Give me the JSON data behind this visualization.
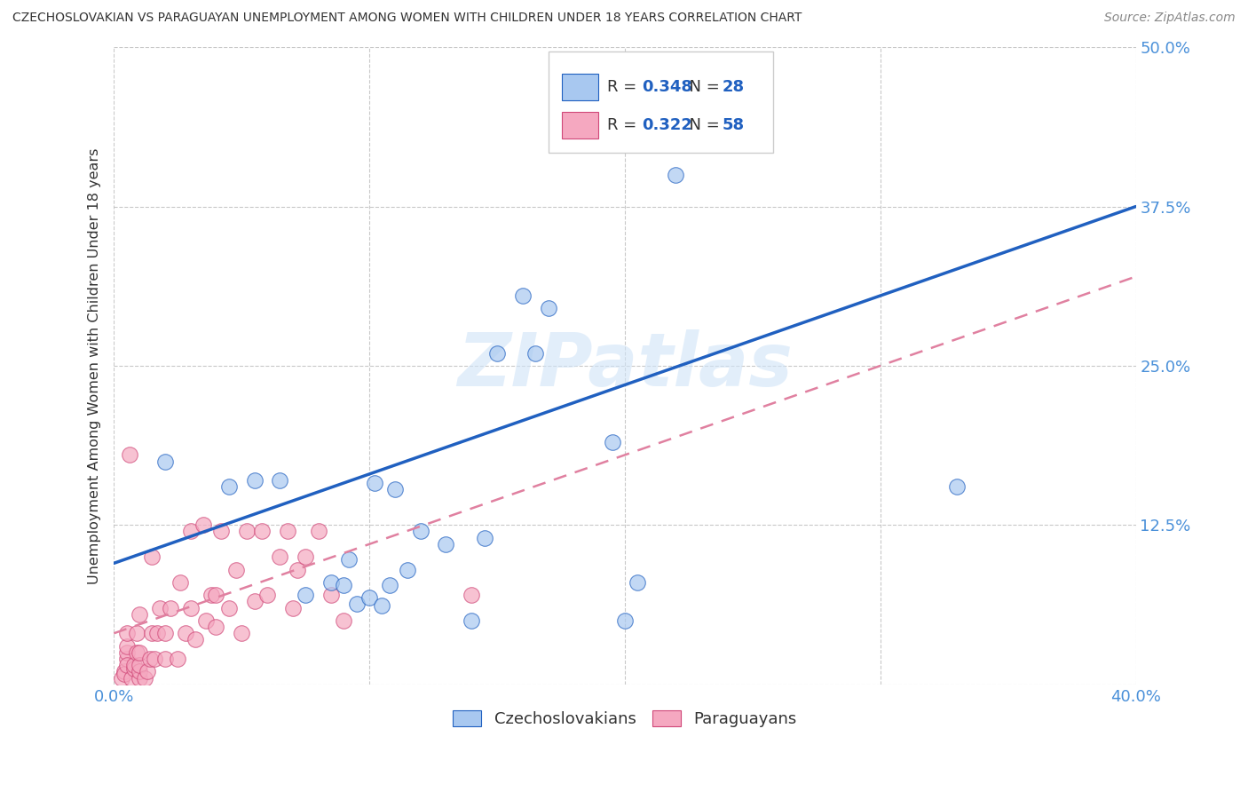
{
  "title": "CZECHOSLOVAKIAN VS PARAGUAYAN UNEMPLOYMENT AMONG WOMEN WITH CHILDREN UNDER 18 YEARS CORRELATION CHART",
  "source": "Source: ZipAtlas.com",
  "ylabel": "Unemployment Among Women with Children Under 18 years",
  "xlabel_czechoslovakians": "Czechoslovakians",
  "xlabel_paraguayans": "Paraguayans",
  "legend_blue_R": "0.348",
  "legend_blue_N": "28",
  "legend_pink_R": "0.322",
  "legend_pink_N": "58",
  "xlim": [
    0.0,
    0.4
  ],
  "ylim": [
    0.0,
    0.5
  ],
  "xticks": [
    0.0,
    0.1,
    0.2,
    0.3,
    0.4
  ],
  "yticks": [
    0.0,
    0.125,
    0.25,
    0.375,
    0.5
  ],
  "color_blue": "#A8C8F0",
  "color_pink": "#F5A8C0",
  "color_blue_line": "#2060C0",
  "color_pink_line": "#D04878",
  "color_pink_line_dashed": "#E080A0",
  "background_color": "#FFFFFF",
  "watermark": "ZIPatlas",
  "blue_line_x0": 0.0,
  "blue_line_y0": 0.095,
  "blue_line_x1": 0.4,
  "blue_line_y1": 0.375,
  "pink_line_x0": 0.0,
  "pink_line_y0": 0.04,
  "pink_line_x1": 0.4,
  "pink_line_y1": 0.32,
  "czechoslovakian_x": [
    0.02,
    0.045,
    0.055,
    0.065,
    0.075,
    0.085,
    0.09,
    0.092,
    0.095,
    0.1,
    0.102,
    0.105,
    0.108,
    0.11,
    0.115,
    0.12,
    0.13,
    0.14,
    0.145,
    0.15,
    0.16,
    0.165,
    0.17,
    0.195,
    0.2,
    0.205,
    0.22,
    0.33
  ],
  "czechoslovakian_y": [
    0.175,
    0.155,
    0.16,
    0.16,
    0.07,
    0.08,
    0.078,
    0.098,
    0.063,
    0.068,
    0.158,
    0.062,
    0.078,
    0.153,
    0.09,
    0.12,
    0.11,
    0.05,
    0.115,
    0.26,
    0.305,
    0.26,
    0.295,
    0.19,
    0.05,
    0.08,
    0.4,
    0.155
  ],
  "paraguayan_x": [
    0.003,
    0.004,
    0.004,
    0.005,
    0.005,
    0.005,
    0.005,
    0.005,
    0.006,
    0.007,
    0.008,
    0.008,
    0.009,
    0.009,
    0.01,
    0.01,
    0.01,
    0.01,
    0.01,
    0.012,
    0.013,
    0.014,
    0.015,
    0.015,
    0.016,
    0.017,
    0.018,
    0.02,
    0.02,
    0.022,
    0.025,
    0.026,
    0.028,
    0.03,
    0.03,
    0.032,
    0.035,
    0.036,
    0.038,
    0.04,
    0.04,
    0.042,
    0.045,
    0.048,
    0.05,
    0.052,
    0.055,
    0.058,
    0.06,
    0.065,
    0.068,
    0.07,
    0.072,
    0.075,
    0.08,
    0.085,
    0.09,
    0.14
  ],
  "paraguayan_y": [
    0.005,
    0.01,
    0.008,
    0.02,
    0.025,
    0.03,
    0.015,
    0.04,
    0.18,
    0.005,
    0.012,
    0.015,
    0.025,
    0.04,
    0.005,
    0.01,
    0.015,
    0.025,
    0.055,
    0.005,
    0.01,
    0.02,
    0.04,
    0.1,
    0.02,
    0.04,
    0.06,
    0.02,
    0.04,
    0.06,
    0.02,
    0.08,
    0.04,
    0.06,
    0.12,
    0.035,
    0.125,
    0.05,
    0.07,
    0.045,
    0.07,
    0.12,
    0.06,
    0.09,
    0.04,
    0.12,
    0.065,
    0.12,
    0.07,
    0.1,
    0.12,
    0.06,
    0.09,
    0.1,
    0.12,
    0.07,
    0.05,
    0.07
  ]
}
